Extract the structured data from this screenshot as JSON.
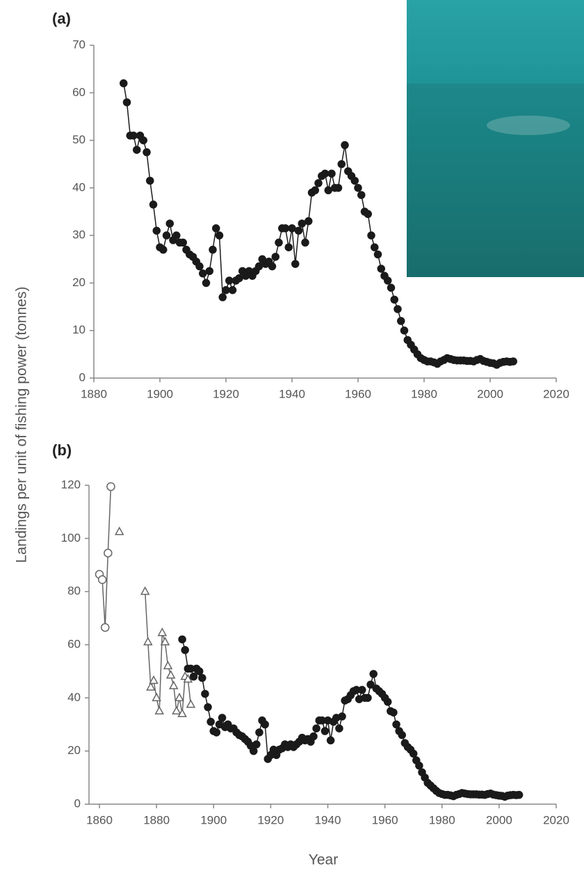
{
  "chart_data": [
    {
      "type": "line",
      "panel_label": "(a)",
      "ylabel": "Landings per unit of fishing power (tonnes)",
      "xlim": [
        1880,
        2020
      ],
      "xticks": [
        1880,
        1900,
        1920,
        1940,
        1960,
        1980,
        2000,
        2020
      ],
      "ylim": [
        0,
        70
      ],
      "yticks": [
        0,
        10,
        20,
        30,
        40,
        50,
        60,
        70
      ],
      "series": [
        {
          "marker": "circle",
          "filled": true,
          "color": "#1a1a1a",
          "x": [
            1889,
            1890,
            1891,
            1892,
            1893,
            1894,
            1895,
            1896,
            1897,
            1898,
            1899,
            1900,
            1901,
            1902,
            1903,
            1904,
            1905,
            1906,
            1907,
            1908,
            1909,
            1910,
            1911,
            1912,
            1913,
            1914,
            1915,
            1916,
            1917,
            1918,
            1919,
            1920,
            1921,
            1922,
            1923,
            1924,
            1925,
            1926,
            1927,
            1928,
            1929,
            1930,
            1931,
            1932,
            1933,
            1934,
            1935,
            1936,
            1937,
            1938,
            1939,
            1940,
            1941,
            1942,
            1943,
            1944,
            1945,
            1946,
            1947,
            1948,
            1949,
            1950,
            1951,
            1952,
            1953,
            1954,
            1955,
            1956,
            1957,
            1958,
            1959,
            1960,
            1961,
            1962,
            1963,
            1964,
            1965,
            1966,
            1967,
            1968,
            1969,
            1970,
            1971,
            1972,
            1973,
            1974,
            1975,
            1976,
            1977,
            1978,
            1979,
            1980,
            1981,
            1982,
            1983,
            1984,
            1985,
            1986,
            1987,
            1988,
            1989,
            1990,
            1991,
            1992,
            1993,
            1994,
            1995,
            1996,
            1997,
            1998,
            1999,
            2000,
            2001,
            2002,
            2003,
            2004,
            2005,
            2006,
            2007
          ],
          "values": [
            62,
            58,
            51,
            51,
            48,
            51,
            50,
            47.5,
            41.5,
            36.5,
            31,
            27.5,
            27,
            30,
            32.5,
            29,
            30,
            28.5,
            28.5,
            27,
            26,
            25.5,
            24.5,
            23.5,
            22,
            20,
            22.5,
            27,
            31.5,
            30,
            17,
            18.5,
            20.5,
            18.5,
            20.5,
            21,
            22.5,
            21.5,
            22.5,
            21.5,
            22.5,
            23.5,
            25,
            24,
            24.5,
            23.5,
            25.5,
            28.5,
            31.5,
            31.5,
            27.5,
            31.5,
            24,
            31,
            32.5,
            28.5,
            33,
            39,
            39.5,
            41,
            42.5,
            43,
            39.5,
            43,
            40,
            40,
            45,
            49,
            43.5,
            42.5,
            41.5,
            40,
            38.5,
            35,
            34.5,
            30,
            27.5,
            26,
            23,
            21.5,
            20.5,
            19,
            16.5,
            14.5,
            12,
            10,
            8,
            7,
            6,
            5,
            4.2,
            3.8,
            3.5,
            3.5,
            3.3,
            3,
            3.5,
            3.8,
            4.2,
            4,
            3.8,
            3.7,
            3.7,
            3.7,
            3.6,
            3.6,
            3.5,
            3.8,
            4,
            3.6,
            3.4,
            3.2,
            3.1,
            2.8,
            3.2,
            3.4,
            3.5,
            3.4,
            3.5
          ]
        }
      ]
    },
    {
      "type": "line",
      "panel_label": "(b)",
      "xlabel": "Year",
      "xlim": [
        1860,
        2020
      ],
      "xticks": [
        1860,
        1880,
        1900,
        1920,
        1940,
        1960,
        1980,
        2000,
        2020
      ],
      "ylim": [
        0,
        120
      ],
      "yticks": [
        0,
        20,
        40,
        60,
        80,
        100,
        120
      ],
      "series": [
        {
          "marker": "circle",
          "filled": false,
          "color": "#666666",
          "x": [
            1860,
            1861,
            1862,
            1863,
            1864
          ],
          "values": [
            86.5,
            84.5,
            66.5,
            94.5,
            119.5
          ]
        },
        {
          "marker": "triangle",
          "filled": false,
          "color": "#666666",
          "x": [
            1867,
            1871,
            1876,
            1877,
            1878,
            1879,
            1880,
            1881,
            1882,
            1883,
            1884,
            1885,
            1886,
            1887,
            1888,
            1889,
            1890,
            1891,
            1892
          ],
          "values": [
            102.5,
            null,
            80,
            61,
            44,
            46.5,
            40,
            35,
            64.5,
            61,
            52,
            48.5,
            44.5,
            35,
            40,
            34,
            48,
            47,
            37.5
          ]
        },
        {
          "marker": "circle",
          "filled": true,
          "color": "#1a1a1a",
          "x": [
            1889,
            1890,
            1891,
            1892,
            1893,
            1894,
            1895,
            1896,
            1897,
            1898,
            1899,
            1900,
            1901,
            1902,
            1903,
            1904,
            1905,
            1906,
            1907,
            1908,
            1909,
            1910,
            1911,
            1912,
            1913,
            1914,
            1915,
            1916,
            1917,
            1918,
            1919,
            1920,
            1921,
            1922,
            1923,
            1924,
            1925,
            1926,
            1927,
            1928,
            1929,
            1930,
            1931,
            1932,
            1933,
            1934,
            1935,
            1936,
            1937,
            1938,
            1939,
            1940,
            1941,
            1942,
            1943,
            1944,
            1945,
            1946,
            1947,
            1948,
            1949,
            1950,
            1951,
            1952,
            1953,
            1954,
            1955,
            1956,
            1957,
            1958,
            1959,
            1960,
            1961,
            1962,
            1963,
            1964,
            1965,
            1966,
            1967,
            1968,
            1969,
            1970,
            1971,
            1972,
            1973,
            1974,
            1975,
            1976,
            1977,
            1978,
            1979,
            1980,
            1981,
            1982,
            1983,
            1984,
            1985,
            1986,
            1987,
            1988,
            1989,
            1990,
            1991,
            1992,
            1993,
            1994,
            1995,
            1996,
            1997,
            1998,
            1999,
            2000,
            2001,
            2002,
            2003,
            2004,
            2005,
            2006,
            2007
          ],
          "values": [
            62,
            58,
            51,
            51,
            48,
            51,
            50,
            47.5,
            41.5,
            36.5,
            31,
            27.5,
            27,
            30,
            32.5,
            29,
            30,
            28.5,
            28.5,
            27,
            26,
            25.5,
            24.5,
            23.5,
            22,
            20,
            22.5,
            27,
            31.5,
            30,
            17,
            18.5,
            20.5,
            18.5,
            20.5,
            21,
            22.5,
            21.5,
            22.5,
            21.5,
            22.5,
            23.5,
            25,
            24,
            24.5,
            23.5,
            25.5,
            28.5,
            31.5,
            31.5,
            27.5,
            31.5,
            24,
            31,
            32.5,
            28.5,
            33,
            39,
            39.5,
            41,
            42.5,
            43,
            39.5,
            43,
            40,
            40,
            45,
            49,
            43.5,
            42.5,
            41.5,
            40,
            38.5,
            35,
            34.5,
            30,
            27.5,
            26,
            23,
            21.5,
            20.5,
            19,
            16.5,
            14.5,
            12,
            10,
            8,
            7,
            6,
            5,
            4.2,
            3.8,
            3.5,
            3.5,
            3.3,
            3,
            3.5,
            3.8,
            4.2,
            4,
            3.8,
            3.7,
            3.7,
            3.7,
            3.6,
            3.6,
            3.5,
            3.8,
            4,
            3.6,
            3.4,
            3.2,
            3.1,
            2.8,
            3.2,
            3.4,
            3.5,
            3.4,
            3.5
          ]
        }
      ]
    }
  ]
}
